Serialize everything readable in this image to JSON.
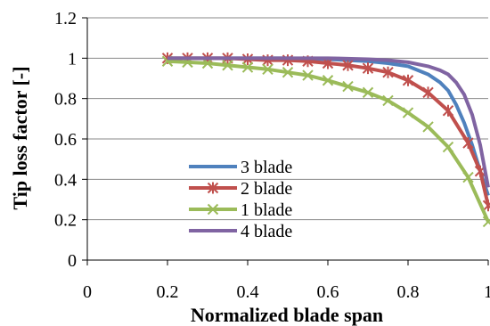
{
  "chart_data": {
    "type": "line",
    "title": "",
    "xlabel": "Normalized blade span",
    "ylabel": "Tip loss factor [-]",
    "xlim": [
      0,
      1
    ],
    "ylim": [
      0,
      1.2
    ],
    "x_ticks": [
      "0",
      "0.2",
      "0.4",
      "0.6",
      "0.8",
      "1"
    ],
    "y_ticks": [
      "0",
      "0.2",
      "0.4",
      "0.6",
      "0.8",
      "1",
      "1.2"
    ],
    "grid": "horizontal",
    "legend_placement": "center-left",
    "series": [
      {
        "name": "3 blade",
        "color": "#4f81bd",
        "marker": "none",
        "x": [
          0.2,
          0.3,
          0.4,
          0.5,
          0.6,
          0.65,
          0.7,
          0.75,
          0.8,
          0.85,
          0.88,
          0.9,
          0.92,
          0.94,
          0.96,
          0.98,
          1.0
        ],
        "y": [
          1.0,
          1.0,
          1.0,
          1.0,
          0.995,
          0.99,
          0.985,
          0.975,
          0.96,
          0.92,
          0.88,
          0.84,
          0.77,
          0.68,
          0.57,
          0.44,
          0.32
        ]
      },
      {
        "name": "2 blade",
        "color": "#c0504d",
        "marker": "star",
        "x": [
          0.2,
          0.25,
          0.3,
          0.35,
          0.4,
          0.45,
          0.5,
          0.55,
          0.6,
          0.65,
          0.7,
          0.75,
          0.8,
          0.85,
          0.9,
          0.95,
          0.98,
          1.0
        ],
        "y": [
          1.0,
          1.0,
          1.0,
          1.0,
          0.995,
          0.99,
          0.99,
          0.985,
          0.975,
          0.965,
          0.95,
          0.93,
          0.89,
          0.83,
          0.74,
          0.58,
          0.44,
          0.27
        ]
      },
      {
        "name": "1 blade",
        "color": "#9bbb59",
        "marker": "x",
        "x": [
          0.2,
          0.25,
          0.3,
          0.35,
          0.4,
          0.45,
          0.5,
          0.55,
          0.6,
          0.65,
          0.7,
          0.75,
          0.8,
          0.85,
          0.9,
          0.95,
          1.0
        ],
        "y": [
          0.985,
          0.98,
          0.975,
          0.965,
          0.955,
          0.945,
          0.93,
          0.915,
          0.89,
          0.86,
          0.83,
          0.79,
          0.73,
          0.66,
          0.56,
          0.41,
          0.19
        ]
      },
      {
        "name": "4 blade",
        "color": "#8064a2",
        "marker": "none",
        "x": [
          0.2,
          0.3,
          0.4,
          0.5,
          0.6,
          0.7,
          0.75,
          0.8,
          0.85,
          0.88,
          0.9,
          0.92,
          0.94,
          0.96,
          0.98,
          1.0
        ],
        "y": [
          1.0,
          1.0,
          1.0,
          1.0,
          1.0,
          0.995,
          0.99,
          0.98,
          0.96,
          0.94,
          0.92,
          0.88,
          0.82,
          0.72,
          0.57,
          0.36
        ]
      }
    ]
  }
}
